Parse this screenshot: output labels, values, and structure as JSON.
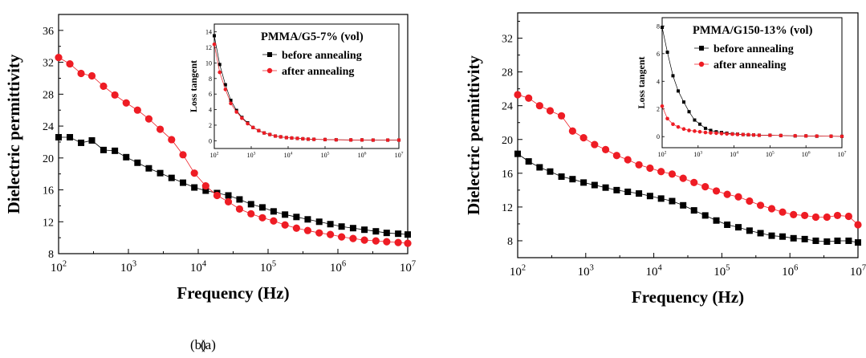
{
  "chart_data": [
    {
      "type": "scatter",
      "xlabel": "Frequency (Hz)",
      "ylabel": "Dielectric permittivity",
      "xscale": "log",
      "xlim": [
        100,
        10000000
      ],
      "ylim": [
        8,
        38
      ],
      "yticks": [
        8,
        12,
        16,
        20,
        24,
        28,
        32,
        36
      ],
      "xticks": [
        {
          "base": "10",
          "exp": "2"
        },
        {
          "base": "10",
          "exp": "3"
        },
        {
          "base": "10",
          "exp": "4"
        },
        {
          "base": "10",
          "exp": "5"
        },
        {
          "base": "10",
          "exp": "6"
        },
        {
          "base": "10",
          "exp": "7"
        }
      ],
      "caption": "(a)",
      "series": [
        {
          "name": "before annealing",
          "color": "#000000",
          "marker": "square",
          "x": [
            100,
            145,
            210,
            300,
            440,
            640,
            930,
            1350,
            1960,
            2850,
            4150,
            6050,
            8800,
            12800,
            18600,
            27000,
            39000,
            57000,
            83000,
            120000,
            175000,
            255000,
            370000,
            540000,
            780000,
            1130000,
            1650000,
            2400000,
            3500000,
            5000000,
            7300000,
            10000000
          ],
          "y": [
            22.6,
            22.6,
            21.9,
            22.2,
            21.0,
            20.9,
            20.1,
            19.4,
            18.7,
            18.1,
            17.5,
            16.9,
            16.3,
            15.9,
            15.6,
            15.3,
            14.8,
            14.2,
            13.8,
            13.3,
            12.9,
            12.6,
            12.3,
            12.0,
            11.7,
            11.4,
            11.2,
            11.0,
            10.8,
            10.6,
            10.5,
            10.4
          ]
        },
        {
          "name": "after annealing",
          "color": "#ee1c24",
          "marker": "circle",
          "x": [
            100,
            145,
            210,
            300,
            440,
            640,
            930,
            1350,
            1960,
            2850,
            4150,
            6050,
            8800,
            12800,
            18600,
            27000,
            39000,
            57000,
            83000,
            120000,
            175000,
            255000,
            370000,
            540000,
            780000,
            1130000,
            1650000,
            2400000,
            3500000,
            5000000,
            7300000,
            10000000
          ],
          "y": [
            32.6,
            31.8,
            30.6,
            30.3,
            29.0,
            27.9,
            26.9,
            26.0,
            24.9,
            23.6,
            22.3,
            20.4,
            18.1,
            16.5,
            15.3,
            14.5,
            13.6,
            13.0,
            12.5,
            12.1,
            11.6,
            11.2,
            10.9,
            10.6,
            10.4,
            10.1,
            9.9,
            9.7,
            9.6,
            9.5,
            9.4,
            9.3
          ]
        }
      ],
      "inset": {
        "ylabel": "Loss tangent",
        "legend_title": "PMMA/G5-7% (vol)",
        "xlim": [
          100,
          10000000
        ],
        "ylim": [
          -1,
          15
        ],
        "yticks": [
          0,
          2,
          4,
          6,
          8,
          10,
          12,
          14
        ],
        "series": [
          {
            "name": "before annealing",
            "x": [
              100,
              140,
              200,
              280,
              400,
              560,
              800,
              1120,
              1600,
              2240,
              3200,
              4500,
              6300,
              9000,
              12500,
              17800,
              25000,
              35000,
              50000,
              100000,
              200000,
              500000,
              1000000,
              2000000,
              5000000,
              10000000
            ],
            "y": [
              13.5,
              9.8,
              7.2,
              5.2,
              3.9,
              3.0,
              2.3,
              1.7,
              1.3,
              1.0,
              0.8,
              0.6,
              0.5,
              0.4,
              0.35,
              0.3,
              0.25,
              0.2,
              0.18,
              0.15,
              0.12,
              0.1,
              0.1,
              0.08,
              0.08,
              0.08
            ]
          },
          {
            "name": "after annealing",
            "x": [
              100,
              140,
              200,
              280,
              400,
              560,
              800,
              1120,
              1600,
              2240,
              3200,
              4500,
              6300,
              9000,
              12500,
              17800,
              25000,
              35000,
              50000,
              100000,
              200000,
              500000,
              1000000,
              2000000,
              5000000,
              10000000
            ],
            "y": [
              12.4,
              8.8,
              6.6,
              4.8,
              3.7,
              2.9,
              2.2,
              1.7,
              1.3,
              1.0,
              0.8,
              0.6,
              0.5,
              0.4,
              0.35,
              0.3,
              0.25,
              0.2,
              0.18,
              0.15,
              0.12,
              0.1,
              0.1,
              0.08,
              0.08,
              0.08
            ]
          }
        ],
        "xticks": [
          {
            "base": "10",
            "exp": "2"
          },
          {
            "base": "10",
            "exp": "3"
          },
          {
            "base": "10",
            "exp": "4"
          },
          {
            "base": "10",
            "exp": "5"
          },
          {
            "base": "10",
            "exp": "6"
          },
          {
            "base": "10",
            "exp": "7"
          }
        ]
      }
    },
    {
      "type": "scatter",
      "xlabel": "Frequency (Hz)",
      "ylabel": "Dielectric permittivity",
      "xscale": "log",
      "xlim": [
        100,
        10000000
      ],
      "ylim": [
        6,
        35
      ],
      "yticks": [
        8,
        12,
        16,
        20,
        24,
        28,
        32
      ],
      "xticks": [
        {
          "base": "10",
          "exp": "2"
        },
        {
          "base": "10",
          "exp": "3"
        },
        {
          "base": "10",
          "exp": "4"
        },
        {
          "base": "10",
          "exp": "5"
        },
        {
          "base": "10",
          "exp": "6"
        },
        {
          "base": "10",
          "exp": "7"
        }
      ],
      "caption": "(b)",
      "series": [
        {
          "name": "before annealing",
          "color": "#000000",
          "marker": "square",
          "x": [
            100,
            145,
            210,
            300,
            440,
            640,
            930,
            1350,
            1960,
            2850,
            4150,
            6050,
            8800,
            12800,
            18600,
            27000,
            39000,
            57000,
            83000,
            120000,
            175000,
            255000,
            370000,
            540000,
            780000,
            1130000,
            1650000,
            2400000,
            3500000,
            5000000,
            7300000,
            10000000
          ],
          "y": [
            18.3,
            17.4,
            16.7,
            16.2,
            15.6,
            15.3,
            14.9,
            14.6,
            14.3,
            14.0,
            13.8,
            13.6,
            13.3,
            13.0,
            12.7,
            12.2,
            11.6,
            11.0,
            10.4,
            9.9,
            9.6,
            9.2,
            8.9,
            8.6,
            8.5,
            8.3,
            8.2,
            8.0,
            7.9,
            8.0,
            8.0,
            7.8
          ]
        },
        {
          "name": "after annealing",
          "color": "#ee1c24",
          "marker": "circle",
          "x": [
            100,
            145,
            210,
            300,
            440,
            640,
            930,
            1350,
            1960,
            2850,
            4150,
            6050,
            8800,
            12800,
            18600,
            27000,
            39000,
            57000,
            83000,
            120000,
            175000,
            255000,
            370000,
            540000,
            780000,
            1130000,
            1650000,
            2400000,
            3500000,
            5000000,
            7300000,
            10000000
          ],
          "y": [
            25.3,
            24.9,
            24.0,
            23.4,
            22.8,
            21.0,
            20.2,
            19.4,
            18.8,
            18.1,
            17.6,
            17.0,
            16.6,
            16.2,
            15.9,
            15.4,
            14.9,
            14.4,
            13.9,
            13.5,
            13.2,
            12.7,
            12.2,
            11.8,
            11.4,
            11.1,
            11.0,
            10.8,
            10.8,
            11.0,
            10.9,
            9.9
          ]
        }
      ],
      "inset": {
        "ylabel": "Loss tangent",
        "legend_title": "PMMA/G150-13% (vol)",
        "xlim": [
          100,
          10000000
        ],
        "ylim": [
          -0.8,
          8.6
        ],
        "yticks": [
          0,
          2,
          4,
          6,
          8
        ],
        "series": [
          {
            "name": "before annealing",
            "x": [
              100,
              140,
              200,
              280,
              400,
              560,
              800,
              1120,
              1600,
              2240,
              3200,
              4500,
              6300,
              9000,
              12500,
              17800,
              25000,
              35000,
              50000,
              100000,
              200000,
              500000,
              1000000,
              2000000,
              5000000,
              10000000
            ],
            "y": [
              7.9,
              6.1,
              4.4,
              3.3,
              2.5,
              1.8,
              1.2,
              0.9,
              0.6,
              0.45,
              0.35,
              0.3,
              0.25,
              0.2,
              0.18,
              0.15,
              0.13,
              0.12,
              0.1,
              0.1,
              0.08,
              0.05,
              0.05,
              0.03,
              0.03,
              0.02
            ]
          },
          {
            "name": "after annealing",
            "x": [
              100,
              140,
              200,
              280,
              400,
              560,
              800,
              1120,
              1600,
              2240,
              3200,
              4500,
              6300,
              9000,
              12500,
              17800,
              25000,
              35000,
              50000,
              100000,
              200000,
              500000,
              1000000,
              2000000,
              5000000,
              10000000
            ],
            "y": [
              2.2,
              1.3,
              0.9,
              0.7,
              0.55,
              0.45,
              0.4,
              0.35,
              0.3,
              0.27,
              0.25,
              0.22,
              0.2,
              0.18,
              0.16,
              0.15,
              0.14,
              0.12,
              0.1,
              0.1,
              0.08,
              0.06,
              0.05,
              0.04,
              0.03,
              0.02
            ]
          }
        ],
        "xticks": [
          {
            "base": "10",
            "exp": "2"
          },
          {
            "base": "10",
            "exp": "3"
          },
          {
            "base": "10",
            "exp": "4"
          },
          {
            "base": "10",
            "exp": "5"
          },
          {
            "base": "10",
            "exp": "6"
          },
          {
            "base": "10",
            "exp": "7"
          }
        ]
      }
    }
  ]
}
